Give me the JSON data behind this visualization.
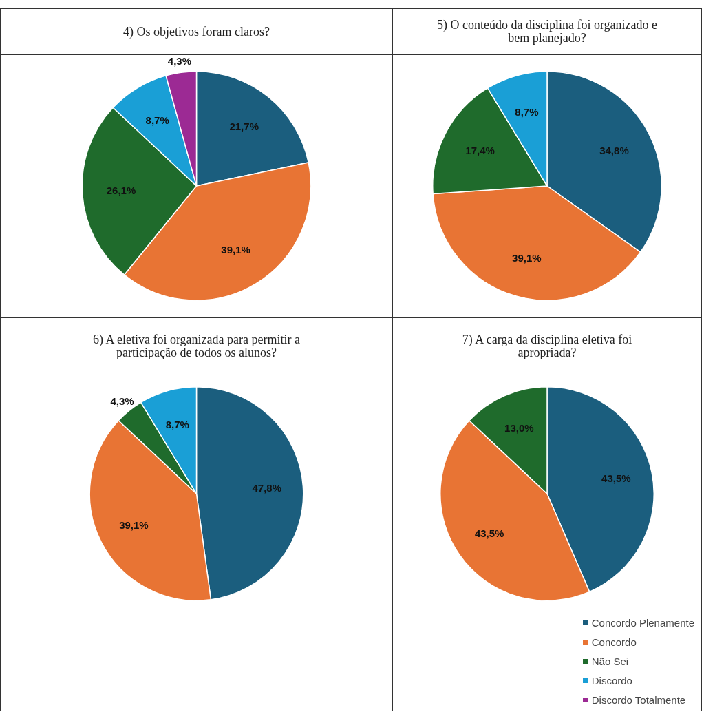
{
  "chart_data": [
    {
      "type": "pie",
      "title": "4) Os objetivos foram claros?",
      "categories": [
        null,
        null,
        null,
        null,
        null
      ],
      "values": [
        21.7,
        39.1,
        26.1,
        8.7,
        4.3
      ],
      "colors": [
        "#1b5e7e",
        "#e87434",
        "#1f6b2c",
        "#1a9fd6",
        "#9c2a94"
      ],
      "value_labels": [
        "21,7%",
        "39,1%",
        "26,1%",
        "8,7%",
        "4,3%"
      ],
      "legend": false
    },
    {
      "type": "pie",
      "title": "5) O conteúdo da disciplina foi organizado e bem planejado?",
      "categories": [
        null,
        null,
        null,
        null
      ],
      "values": [
        34.8,
        39.1,
        17.4,
        8.7
      ],
      "colors": [
        "#1b5e7e",
        "#e87434",
        "#1f6b2c",
        "#1a9fd6"
      ],
      "value_labels": [
        "34,8%",
        "39,1%",
        "17,4%",
        "8,7%"
      ],
      "legend": false
    },
    {
      "type": "pie",
      "title": "6) A eletiva foi organizada para permitir a participação de todos os alunos?",
      "categories": [
        null,
        null,
        null,
        null
      ],
      "values": [
        47.8,
        39.1,
        4.3,
        8.7
      ],
      "colors": [
        "#1b5e7e",
        "#e87434",
        "#1f6b2c",
        "#1a9fd6"
      ],
      "value_labels": [
        "47,8%",
        "39,1%",
        "4,3%",
        "8,7%"
      ],
      "legend": false
    },
    {
      "type": "pie",
      "title": "7) A carga da disciplina eletiva foi apropriada?",
      "categories": [
        "Concordo Plenamente",
        "Concordo",
        "Não Sei",
        "Discordo",
        "Discordo Totalmente"
      ],
      "values": [
        43.5,
        43.5,
        13.0,
        0,
        0
      ],
      "colors": [
        "#1b5e7e",
        "#e87434",
        "#1f6b2c",
        "#1a9fd6",
        "#9c2a94"
      ],
      "value_labels": [
        "43,5%",
        "43,5%",
        "13,0%",
        null,
        null
      ],
      "legend": "bottom right"
    }
  ]
}
